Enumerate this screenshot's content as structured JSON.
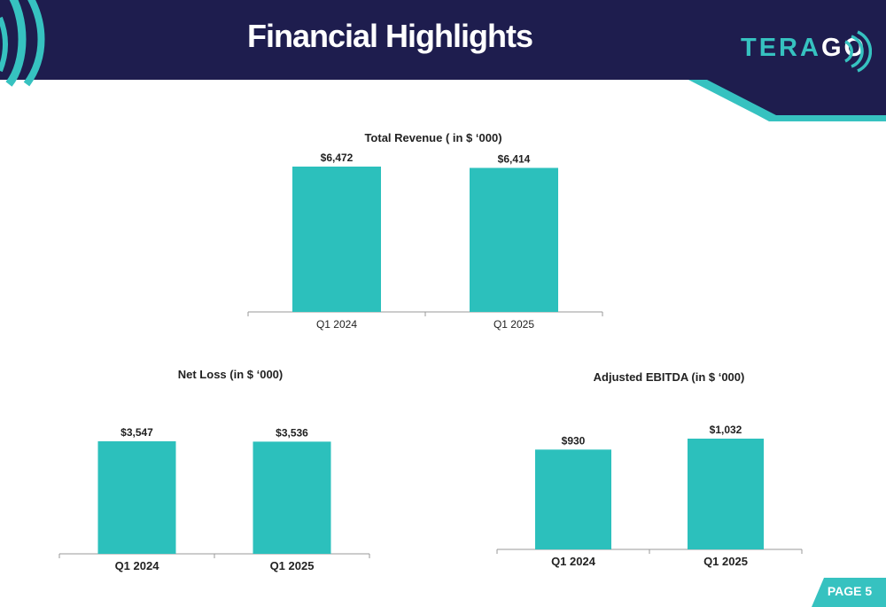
{
  "slide": {
    "title": "Financial Highlights",
    "logo_part1": "TERA",
    "logo_part2": "GO",
    "page_label": "PAGE 5"
  },
  "colors": {
    "navy": "#1e1d4e",
    "teal": "#36c2c0",
    "bar": "#2cc0bc",
    "text": "#222222"
  },
  "chart_data": [
    {
      "id": "revenue",
      "type": "bar",
      "title": "Total Revenue ( in $ ‘000)",
      "categories": [
        "Q1 2024",
        "Q1 2025"
      ],
      "values": [
        6472,
        6414
      ],
      "value_labels": [
        "$6,472",
        "$6,414"
      ],
      "ylim": [
        0,
        6472
      ],
      "xlabel": "",
      "ylabel": "",
      "grid": false,
      "legend": "none"
    },
    {
      "id": "netloss",
      "type": "bar",
      "title": "Net Loss (in $ ‘000)",
      "categories": [
        "Q1 2024",
        "Q1 2025"
      ],
      "values": [
        3547,
        3536
      ],
      "value_labels": [
        "$3,547",
        "$3,536"
      ],
      "ylim": [
        0,
        3547
      ],
      "xlabel": "",
      "ylabel": "",
      "grid": false,
      "legend": "none"
    },
    {
      "id": "ebitda",
      "type": "bar",
      "title": "Adjusted EBITDA (in $ ‘000)",
      "categories": [
        "Q1 2024",
        "Q1 2025"
      ],
      "values": [
        930,
        1032
      ],
      "value_labels": [
        "$930",
        "$1,032"
      ],
      "ylim": [
        0,
        1032
      ],
      "xlabel": "",
      "ylabel": "",
      "grid": false,
      "legend": "none"
    }
  ]
}
